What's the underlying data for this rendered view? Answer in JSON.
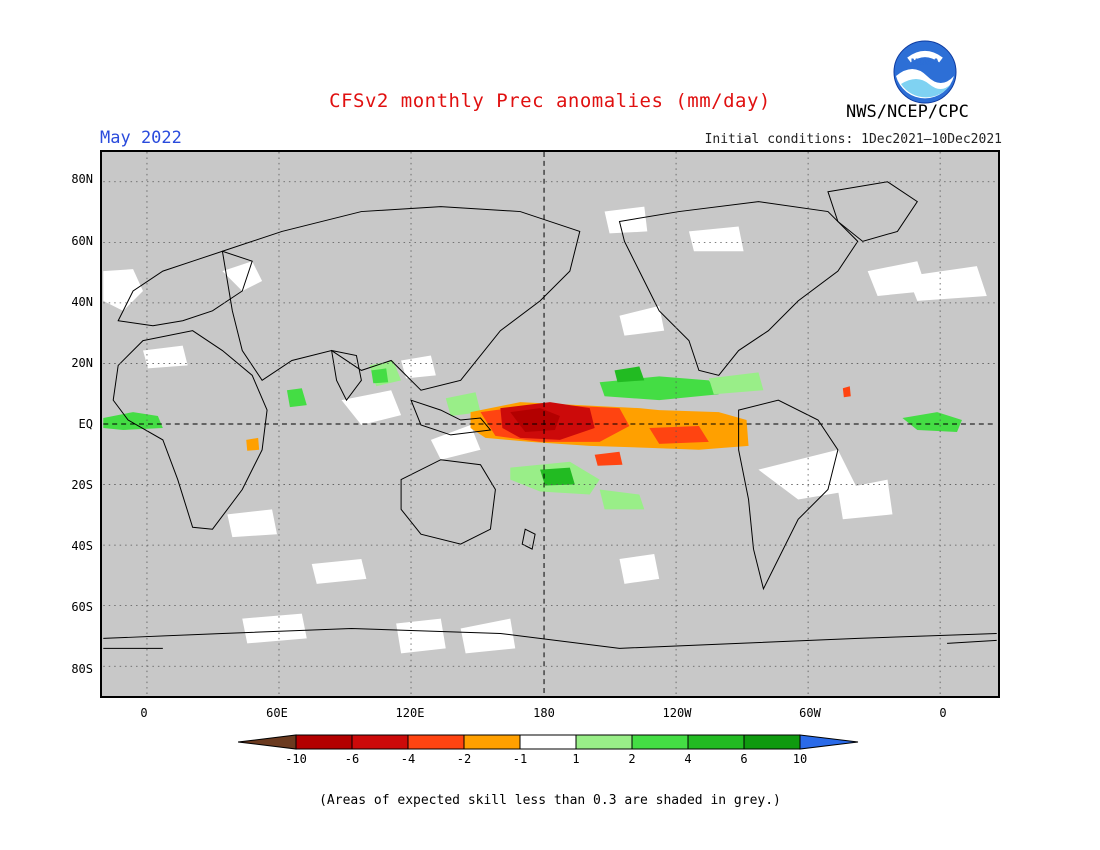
{
  "header": {
    "title": "CFSv2 monthly Prec anomalies (mm/day)",
    "month": "May 2022",
    "initial_conditions": "Initial conditions: 1Dec2021—10Dec2021",
    "agency": "NWS/NCEP/CPC",
    "logo_text": "NOAA"
  },
  "axes": {
    "y_labels": [
      "80N",
      "60N",
      "40N",
      "20N",
      "EQ",
      "20S",
      "40S",
      "60S",
      "80S"
    ],
    "x_labels": [
      "0",
      "60E",
      "120E",
      "180",
      "120W",
      "60W",
      "0"
    ]
  },
  "colorbar": {
    "labels": [
      "-10",
      "-6",
      "-4",
      "-2",
      "-1",
      "1",
      "2",
      "4",
      "6",
      "10"
    ],
    "colors": [
      "#6b3a1f",
      "#b30000",
      "#cc0a0a",
      "#ff4411",
      "#ffa000",
      "#ffffff",
      "#99ee88",
      "#44dd44",
      "#22bb22",
      "#0f9a0f",
      "#2a6ae8"
    ]
  },
  "map": {
    "background_skill_mask": "#c8c8c8",
    "gridlines": "dotted",
    "reference_lines": [
      "EQ",
      "180"
    ]
  },
  "footnote": "(Areas of expected skill less than 0.3 are shaded in grey.)"
}
